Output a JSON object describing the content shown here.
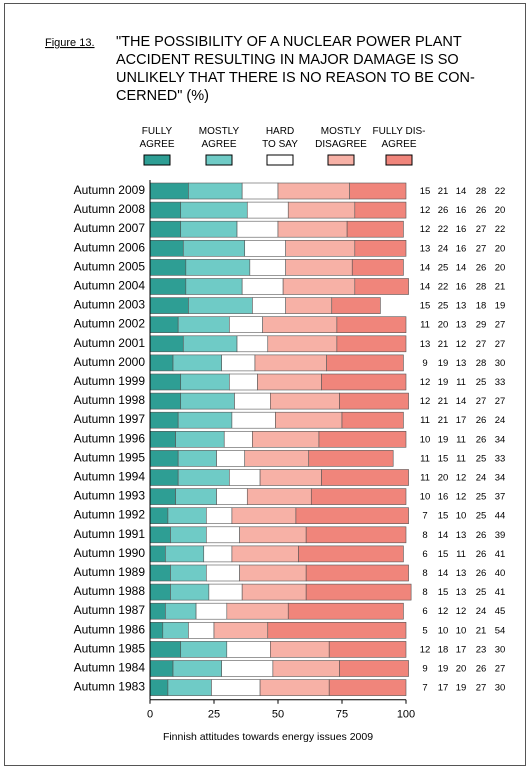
{
  "figure_label": "Figure 13.",
  "title": "\"THE POSSIBILITY OF A NUCLEAR POWER PLANT ACCIDENT RESULTING IN MAJOR DAMAGE IS SO UNLIKELY THAT THERE IS NO REASON TO BE CON-CERNED\" (%)",
  "title_lines": [
    "\"THE POSSIBILITY OF A NUCLEAR POWER PLANT",
    "ACCIDENT RESULTING IN MAJOR DAMAGE IS SO",
    "UNLIKELY THAT THERE IS NO REASON TO BE CON-",
    "CERNED\" (%)"
  ],
  "footer": "Finnish attitudes towards energy issues 2009",
  "colors": {
    "fully_agree": "#2e9e94",
    "mostly_agree": "#6fcbc6",
    "hard_to_say": "#ffffff",
    "mostly_disagree": "#f7b1a6",
    "fully_disagree": "#f0857b"
  },
  "chart_data": {
    "type": "bar",
    "orientation": "horizontal",
    "stacked": true,
    "title": "\"THE POSSIBILITY OF A NUCLEAR POWER PLANT ACCIDENT RESULTING IN MAJOR DAMAGE IS SO UNLIKELY THAT THERE IS NO REASON TO BE CON-CERNED\" (%)",
    "xlim": [
      0,
      100
    ],
    "x_ticks": [
      0,
      25,
      50,
      75,
      100
    ],
    "legend_position": "top",
    "grid": false,
    "categories": [
      "Autumn 2009",
      "Autumn 2008",
      "Autumn 2007",
      "Autumn 2006",
      "Autumn 2005",
      "Autumn 2004",
      "Autumn 2003",
      "Autumn 2002",
      "Autumn 2001",
      "Autumn 2000",
      "Autumn 1999",
      "Autumn 1998",
      "Autumn 1997",
      "Autumn 1996",
      "Autumn 1995",
      "Autumn 1994",
      "Autumn 1993",
      "Autumn 1992",
      "Autumn 1991",
      "Autumn 1990",
      "Autumn 1989",
      "Autumn 1988",
      "Autumn 1987",
      "Autumn 1986",
      "Autumn 1985",
      "Autumn 1984",
      "Autumn 1983"
    ],
    "series": [
      {
        "name": "FULLY AGREE",
        "label_lines": [
          "FULLY",
          "AGREE"
        ],
        "color_key": "fully_agree",
        "values": [
          15,
          12,
          12,
          13,
          14,
          14,
          15,
          11,
          13,
          9,
          12,
          12,
          11,
          10,
          11,
          11,
          10,
          7,
          8,
          6,
          8,
          8,
          6,
          5,
          12,
          9,
          7
        ]
      },
      {
        "name": "MOSTLY AGREE",
        "label_lines": [
          "MOSTLY",
          "AGREE"
        ],
        "color_key": "mostly_agree",
        "values": [
          21,
          26,
          22,
          24,
          25,
          22,
          25,
          20,
          21,
          19,
          19,
          21,
          21,
          19,
          15,
          20,
          16,
          15,
          14,
          15,
          14,
          15,
          12,
          10,
          18,
          19,
          17
        ]
      },
      {
        "name": "HARD TO SAY",
        "label_lines": [
          "HARD",
          "TO SAY"
        ],
        "color_key": "hard_to_say",
        "values": [
          14,
          16,
          16,
          16,
          14,
          16,
          13,
          13,
          12,
          13,
          11,
          14,
          17,
          11,
          11,
          12,
          12,
          10,
          13,
          11,
          13,
          13,
          12,
          10,
          17,
          20,
          19
        ]
      },
      {
        "name": "MOSTLY DISAGREE",
        "label_lines": [
          "MOSTLY",
          "DISAGREE"
        ],
        "color_key": "mostly_disagree",
        "values": [
          28,
          26,
          27,
          27,
          26,
          28,
          18,
          29,
          27,
          28,
          25,
          27,
          26,
          26,
          25,
          24,
          25,
          25,
          26,
          26,
          26,
          25,
          24,
          21,
          23,
          26,
          27
        ]
      },
      {
        "name": "FULLY DISAGREE",
        "label_lines": [
          "FULLY DIS-",
          "AGREE"
        ],
        "color_key": "fully_disagree",
        "values": [
          22,
          20,
          22,
          20,
          20,
          21,
          19,
          27,
          27,
          30,
          33,
          27,
          24,
          34,
          33,
          34,
          37,
          44,
          39,
          41,
          40,
          41,
          45,
          54,
          30,
          27,
          30
        ]
      }
    ]
  }
}
